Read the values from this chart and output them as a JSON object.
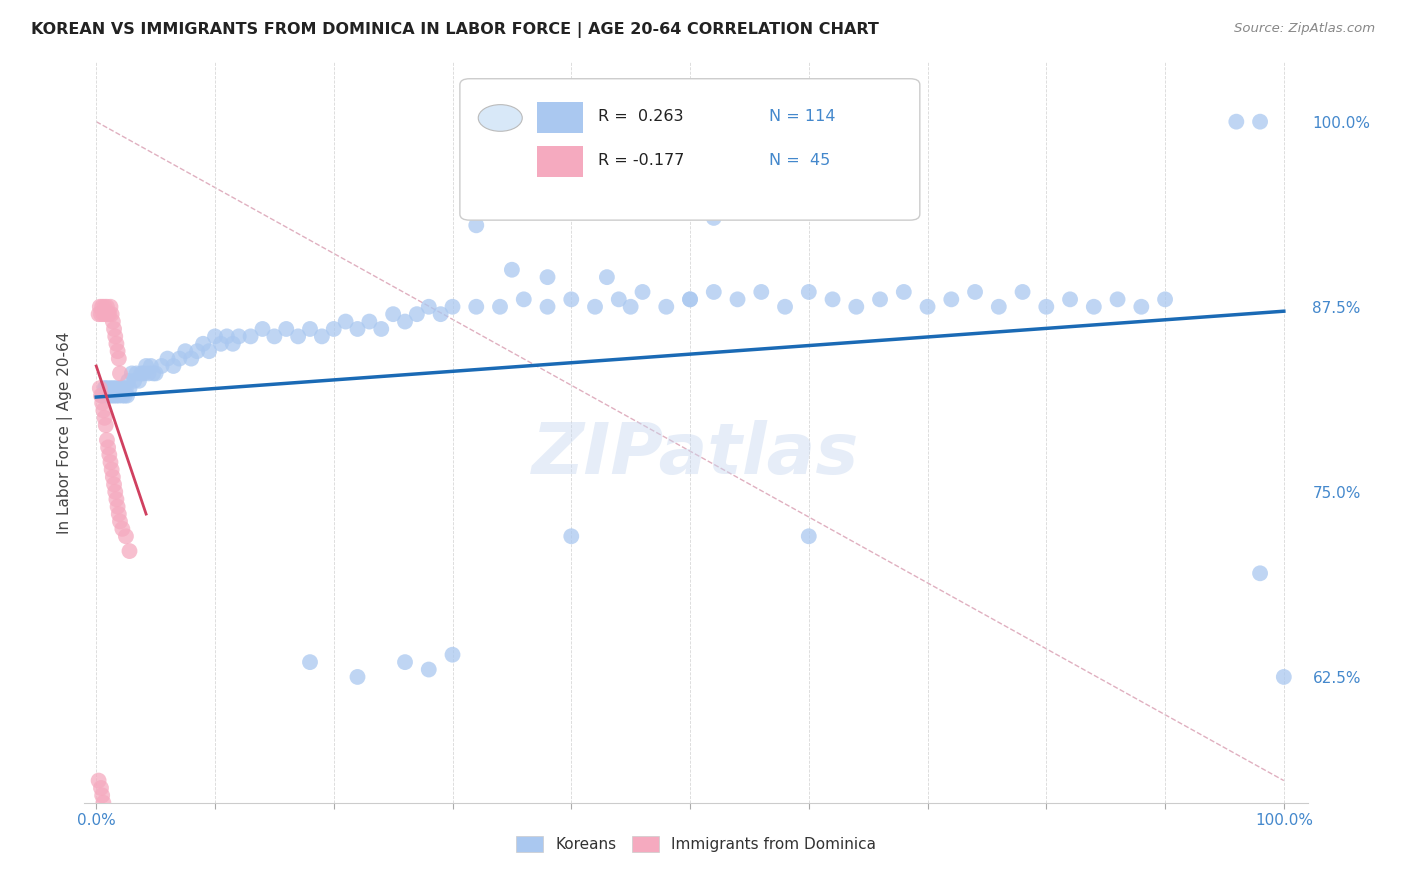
{
  "title": "KOREAN VS IMMIGRANTS FROM DOMINICA IN LABOR FORCE | AGE 20-64 CORRELATION CHART",
  "source": "Source: ZipAtlas.com",
  "ylabel": "In Labor Force | Age 20-64",
  "blue_color": "#aac8f0",
  "pink_color": "#f5aabf",
  "line_blue": "#1a6ab5",
  "line_pink": "#d04060",
  "line_diag_color": "#e0b0c0",
  "axis_color": "#4488cc",
  "watermark": "ZIPatlas",
  "yticks": [
    0.625,
    0.75,
    0.875,
    1.0
  ],
  "ytick_labels": [
    "62.5%",
    "75.0%",
    "87.5%",
    "100.0%"
  ],
  "xlim": [
    -0.01,
    1.02
  ],
  "ylim": [
    0.54,
    1.04
  ],
  "blue_scatter_x": [
    0.005,
    0.007,
    0.008,
    0.009,
    0.01,
    0.011,
    0.012,
    0.013,
    0.014,
    0.015,
    0.016,
    0.017,
    0.018,
    0.019,
    0.02,
    0.021,
    0.022,
    0.023,
    0.024,
    0.025,
    0.026,
    0.027,
    0.028,
    0.03,
    0.032,
    0.034,
    0.036,
    0.038,
    0.04,
    0.042,
    0.044,
    0.046,
    0.048,
    0.05,
    0.055,
    0.06,
    0.065,
    0.07,
    0.075,
    0.08,
    0.085,
    0.09,
    0.095,
    0.1,
    0.105,
    0.11,
    0.115,
    0.12,
    0.13,
    0.14,
    0.15,
    0.16,
    0.17,
    0.18,
    0.19,
    0.2,
    0.21,
    0.22,
    0.23,
    0.24,
    0.25,
    0.26,
    0.27,
    0.28,
    0.29,
    0.3,
    0.32,
    0.34,
    0.36,
    0.38,
    0.4,
    0.42,
    0.44,
    0.46,
    0.48,
    0.5,
    0.52,
    0.54,
    0.56,
    0.58,
    0.6,
    0.62,
    0.64,
    0.66,
    0.68,
    0.7,
    0.72,
    0.74,
    0.76,
    0.78,
    0.8,
    0.82,
    0.84,
    0.86,
    0.88,
    0.9,
    0.96,
    0.98,
    0.98,
    1.0
  ],
  "blue_scatter_y": [
    0.815,
    0.82,
    0.82,
    0.815,
    0.82,
    0.815,
    0.82,
    0.815,
    0.82,
    0.815,
    0.82,
    0.815,
    0.82,
    0.815,
    0.82,
    0.82,
    0.815,
    0.82,
    0.815,
    0.82,
    0.815,
    0.825,
    0.82,
    0.83,
    0.825,
    0.83,
    0.825,
    0.83,
    0.83,
    0.835,
    0.83,
    0.835,
    0.83,
    0.83,
    0.835,
    0.84,
    0.835,
    0.84,
    0.845,
    0.84,
    0.845,
    0.85,
    0.845,
    0.855,
    0.85,
    0.855,
    0.85,
    0.855,
    0.855,
    0.86,
    0.855,
    0.86,
    0.855,
    0.86,
    0.855,
    0.86,
    0.865,
    0.86,
    0.865,
    0.86,
    0.87,
    0.865,
    0.87,
    0.875,
    0.87,
    0.875,
    0.875,
    0.875,
    0.88,
    0.875,
    0.88,
    0.875,
    0.88,
    0.885,
    0.875,
    0.88,
    0.885,
    0.88,
    0.885,
    0.875,
    0.885,
    0.88,
    0.875,
    0.88,
    0.885,
    0.875,
    0.88,
    0.885,
    0.875,
    0.885,
    0.875,
    0.88,
    0.875,
    0.88,
    0.875,
    0.88,
    1.0,
    1.0,
    0.695,
    0.625
  ],
  "blue_extra_x": [
    0.32,
    0.52,
    0.35,
    0.43,
    0.45,
    0.38,
    0.5,
    0.18,
    0.22,
    0.26,
    0.3,
    0.28,
    0.4,
    0.6
  ],
  "blue_extra_y": [
    0.93,
    0.935,
    0.9,
    0.895,
    0.875,
    0.895,
    0.88,
    0.635,
    0.625,
    0.635,
    0.64,
    0.63,
    0.72,
    0.72
  ],
  "pink_scatter_x": [
    0.002,
    0.003,
    0.004,
    0.005,
    0.006,
    0.007,
    0.008,
    0.009,
    0.01,
    0.011,
    0.012,
    0.013,
    0.014,
    0.015,
    0.016,
    0.017,
    0.018,
    0.019,
    0.02,
    0.003,
    0.004,
    0.005,
    0.006,
    0.007,
    0.008,
    0.009,
    0.01,
    0.011,
    0.012,
    0.013,
    0.014,
    0.015,
    0.016,
    0.017,
    0.018,
    0.019,
    0.02,
    0.022,
    0.025,
    0.028,
    0.002,
    0.003,
    0.004,
    0.005,
    0.006
  ],
  "pink_scatter_y": [
    0.87,
    0.875,
    0.87,
    0.875,
    0.87,
    0.875,
    0.87,
    0.875,
    0.87,
    0.87,
    0.875,
    0.87,
    0.865,
    0.86,
    0.855,
    0.85,
    0.845,
    0.84,
    0.83,
    0.82,
    0.815,
    0.81,
    0.805,
    0.8,
    0.795,
    0.785,
    0.78,
    0.775,
    0.77,
    0.765,
    0.76,
    0.755,
    0.75,
    0.745,
    0.74,
    0.735,
    0.73,
    0.725,
    0.72,
    0.71,
    0.555,
    0.53,
    0.55,
    0.545,
    0.54
  ],
  "blue_line_x": [
    0.0,
    1.0
  ],
  "blue_line_y": [
    0.814,
    0.872
  ],
  "pink_line_x": [
    0.0,
    0.042
  ],
  "pink_line_y": [
    0.835,
    0.735
  ],
  "diag_line_x": [
    0.0,
    1.0
  ],
  "diag_line_y": [
    1.0,
    0.555
  ]
}
